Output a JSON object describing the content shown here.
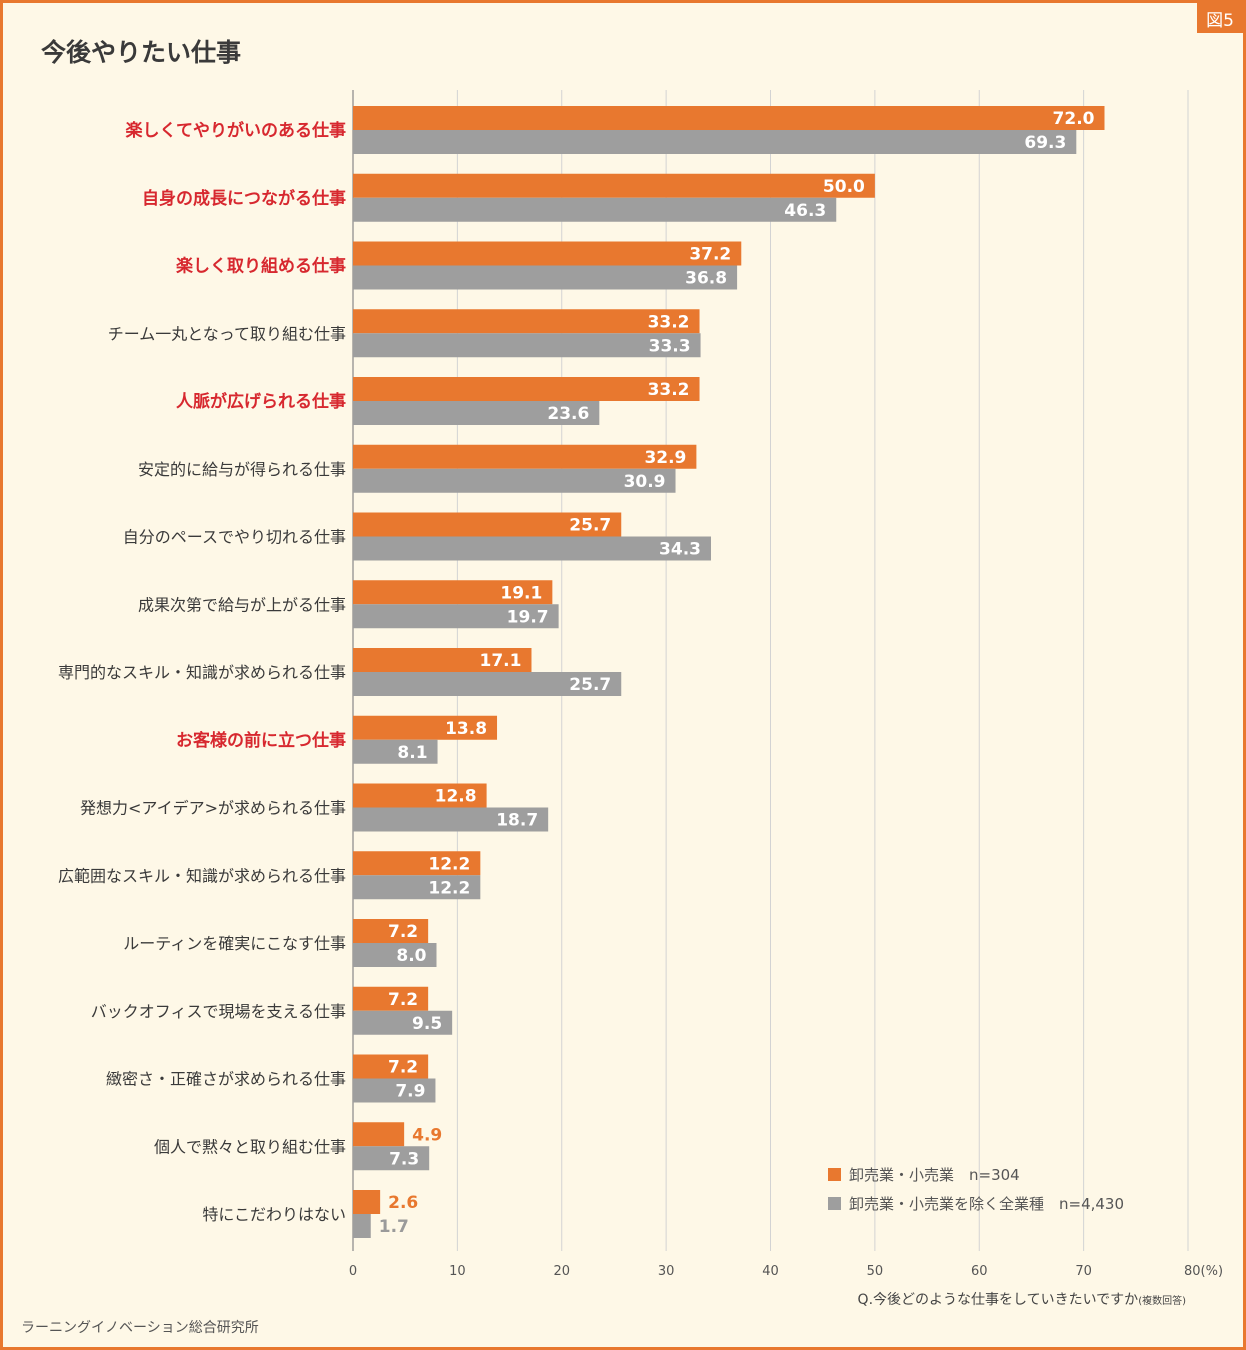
{
  "figure_label": "図5",
  "chart_data": {
    "type": "bar",
    "orientation": "horizontal",
    "title": "今後やりたい仕事",
    "categories": [
      "楽しくてやりがいのある仕事",
      "自身の成長につながる仕事",
      "楽しく取り組める仕事",
      "チーム一丸となって取り組む仕事",
      "人脈が広げられる仕事",
      "安定的に給与が得られる仕事",
      "自分のペースでやり切れる仕事",
      "成果次第で給与が上がる仕事",
      "専門的なスキル・知識が求められる仕事",
      "お客様の前に立つ仕事",
      "発想力<アイデア>が求められる仕事",
      "広範囲なスキル・知識が求められる仕事",
      "ルーティンを確実にこなす仕事",
      "バックオフィスで現場を支える仕事",
      "緻密さ・正確さが求められる仕事",
      "個人で黙々と取り組む仕事",
      "特にこだわりはない"
    ],
    "highlighted_categories": [
      "楽しくてやりがいのある仕事",
      "自身の成長につながる仕事",
      "楽しく取り組める仕事",
      "人脈が広げられる仕事",
      "お客様の前に立つ仕事"
    ],
    "series": [
      {
        "name": "卸売業・小売業　n=304",
        "color": "#e8782f",
        "values": [
          72.0,
          50.0,
          37.2,
          33.2,
          33.2,
          32.9,
          25.7,
          19.1,
          17.1,
          13.8,
          12.8,
          12.2,
          7.2,
          7.2,
          7.2,
          4.9,
          2.6
        ]
      },
      {
        "name": "卸売業・小売業を除く全業種　n=4,430",
        "color": "#9e9e9e",
        "values": [
          69.3,
          46.3,
          36.8,
          33.3,
          23.6,
          30.9,
          34.3,
          19.7,
          25.7,
          8.1,
          18.7,
          12.2,
          8.0,
          9.5,
          7.9,
          7.3,
          1.7
        ]
      }
    ],
    "value_labels": [
      [
        "72.0",
        "50.0",
        "37.2",
        "33.2",
        "33.2",
        "32.9",
        "25.7",
        "19.1",
        "17.1",
        "13.8",
        "12.8",
        "12.2",
        "7.2",
        "7.2",
        "7.2",
        "4.9",
        "2.6"
      ],
      [
        "69.3",
        "46.3",
        "36.8",
        "33.3",
        "23.6",
        "30.9",
        "34.3",
        "19.7",
        "25.7",
        "8.1",
        "18.7",
        "12.2",
        "8.0",
        "9.5",
        "7.9",
        "7.3",
        "1.7"
      ]
    ],
    "x_ticks": [
      "0",
      "10",
      "20",
      "30",
      "40",
      "50",
      "60",
      "70",
      "80(%)"
    ],
    "xlim": [
      0,
      80
    ],
    "grid": true,
    "legend_position": "bottom-right"
  },
  "question": {
    "main": "Q.今後どのような仕事をしていきたいですか",
    "note": "(複数回答)"
  },
  "source": "ラーニングイノベーション総合研究所"
}
